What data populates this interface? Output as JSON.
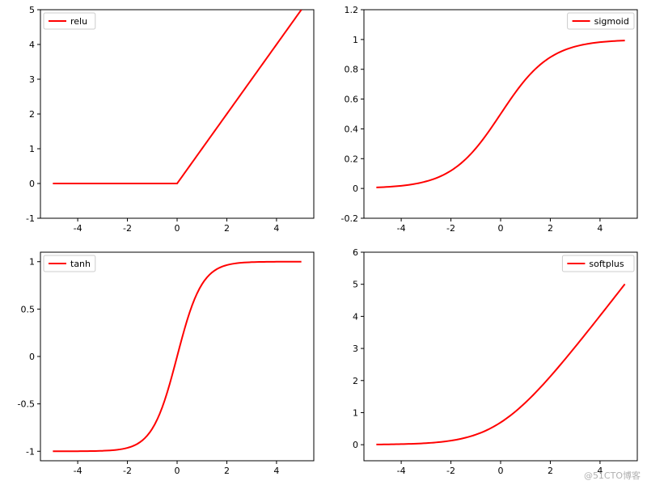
{
  "background_color": "#ffffff",
  "axis_color": "#000000",
  "tick_fontsize": 11,
  "legend_fontsize": 11,
  "line_color": "#ff0000",
  "line_width": 2,
  "watermark": "@51CTO博客",
  "panels": [
    {
      "key": "relu",
      "legend_label": "relu",
      "legend_position": "upper-left",
      "xlim": [
        -5.5,
        5.5
      ],
      "ylim": [
        -1,
        5
      ],
      "xticks": [
        -4,
        -2,
        0,
        2,
        4
      ],
      "yticks": [
        -1,
        0,
        1,
        2,
        3,
        4,
        5
      ],
      "func": "relu",
      "x_start": -5,
      "x_end": 5,
      "n_points": 101
    },
    {
      "key": "sigmoid",
      "legend_label": "sigmoid",
      "legend_position": "upper-right",
      "xlim": [
        -5.5,
        5.5
      ],
      "ylim": [
        -0.2,
        1.2
      ],
      "xticks": [
        -4,
        -2,
        0,
        2,
        4
      ],
      "yticks": [
        -0.2,
        0.0,
        0.2,
        0.4,
        0.6,
        0.8,
        1.0,
        1.2
      ],
      "func": "sigmoid",
      "x_start": -5,
      "x_end": 5,
      "n_points": 101
    },
    {
      "key": "tanh",
      "legend_label": "tanh",
      "legend_position": "upper-left",
      "xlim": [
        -5.5,
        5.5
      ],
      "ylim": [
        -1.1,
        1.1
      ],
      "xticks": [
        -4,
        -2,
        0,
        2,
        4
      ],
      "yticks": [
        -1.0,
        -0.5,
        0.0,
        0.5,
        1.0
      ],
      "func": "tanh",
      "x_start": -5,
      "x_end": 5,
      "n_points": 101
    },
    {
      "key": "softplus",
      "legend_label": "softplus",
      "legend_position": "upper-right",
      "xlim": [
        -5.5,
        5.5
      ],
      "ylim": [
        -0.5,
        6
      ],
      "xticks": [
        -4,
        -2,
        0,
        2,
        4
      ],
      "yticks": [
        0,
        1,
        2,
        3,
        4,
        5,
        6
      ],
      "func": "softplus",
      "x_start": -5,
      "x_end": 5,
      "n_points": 101
    }
  ]
}
